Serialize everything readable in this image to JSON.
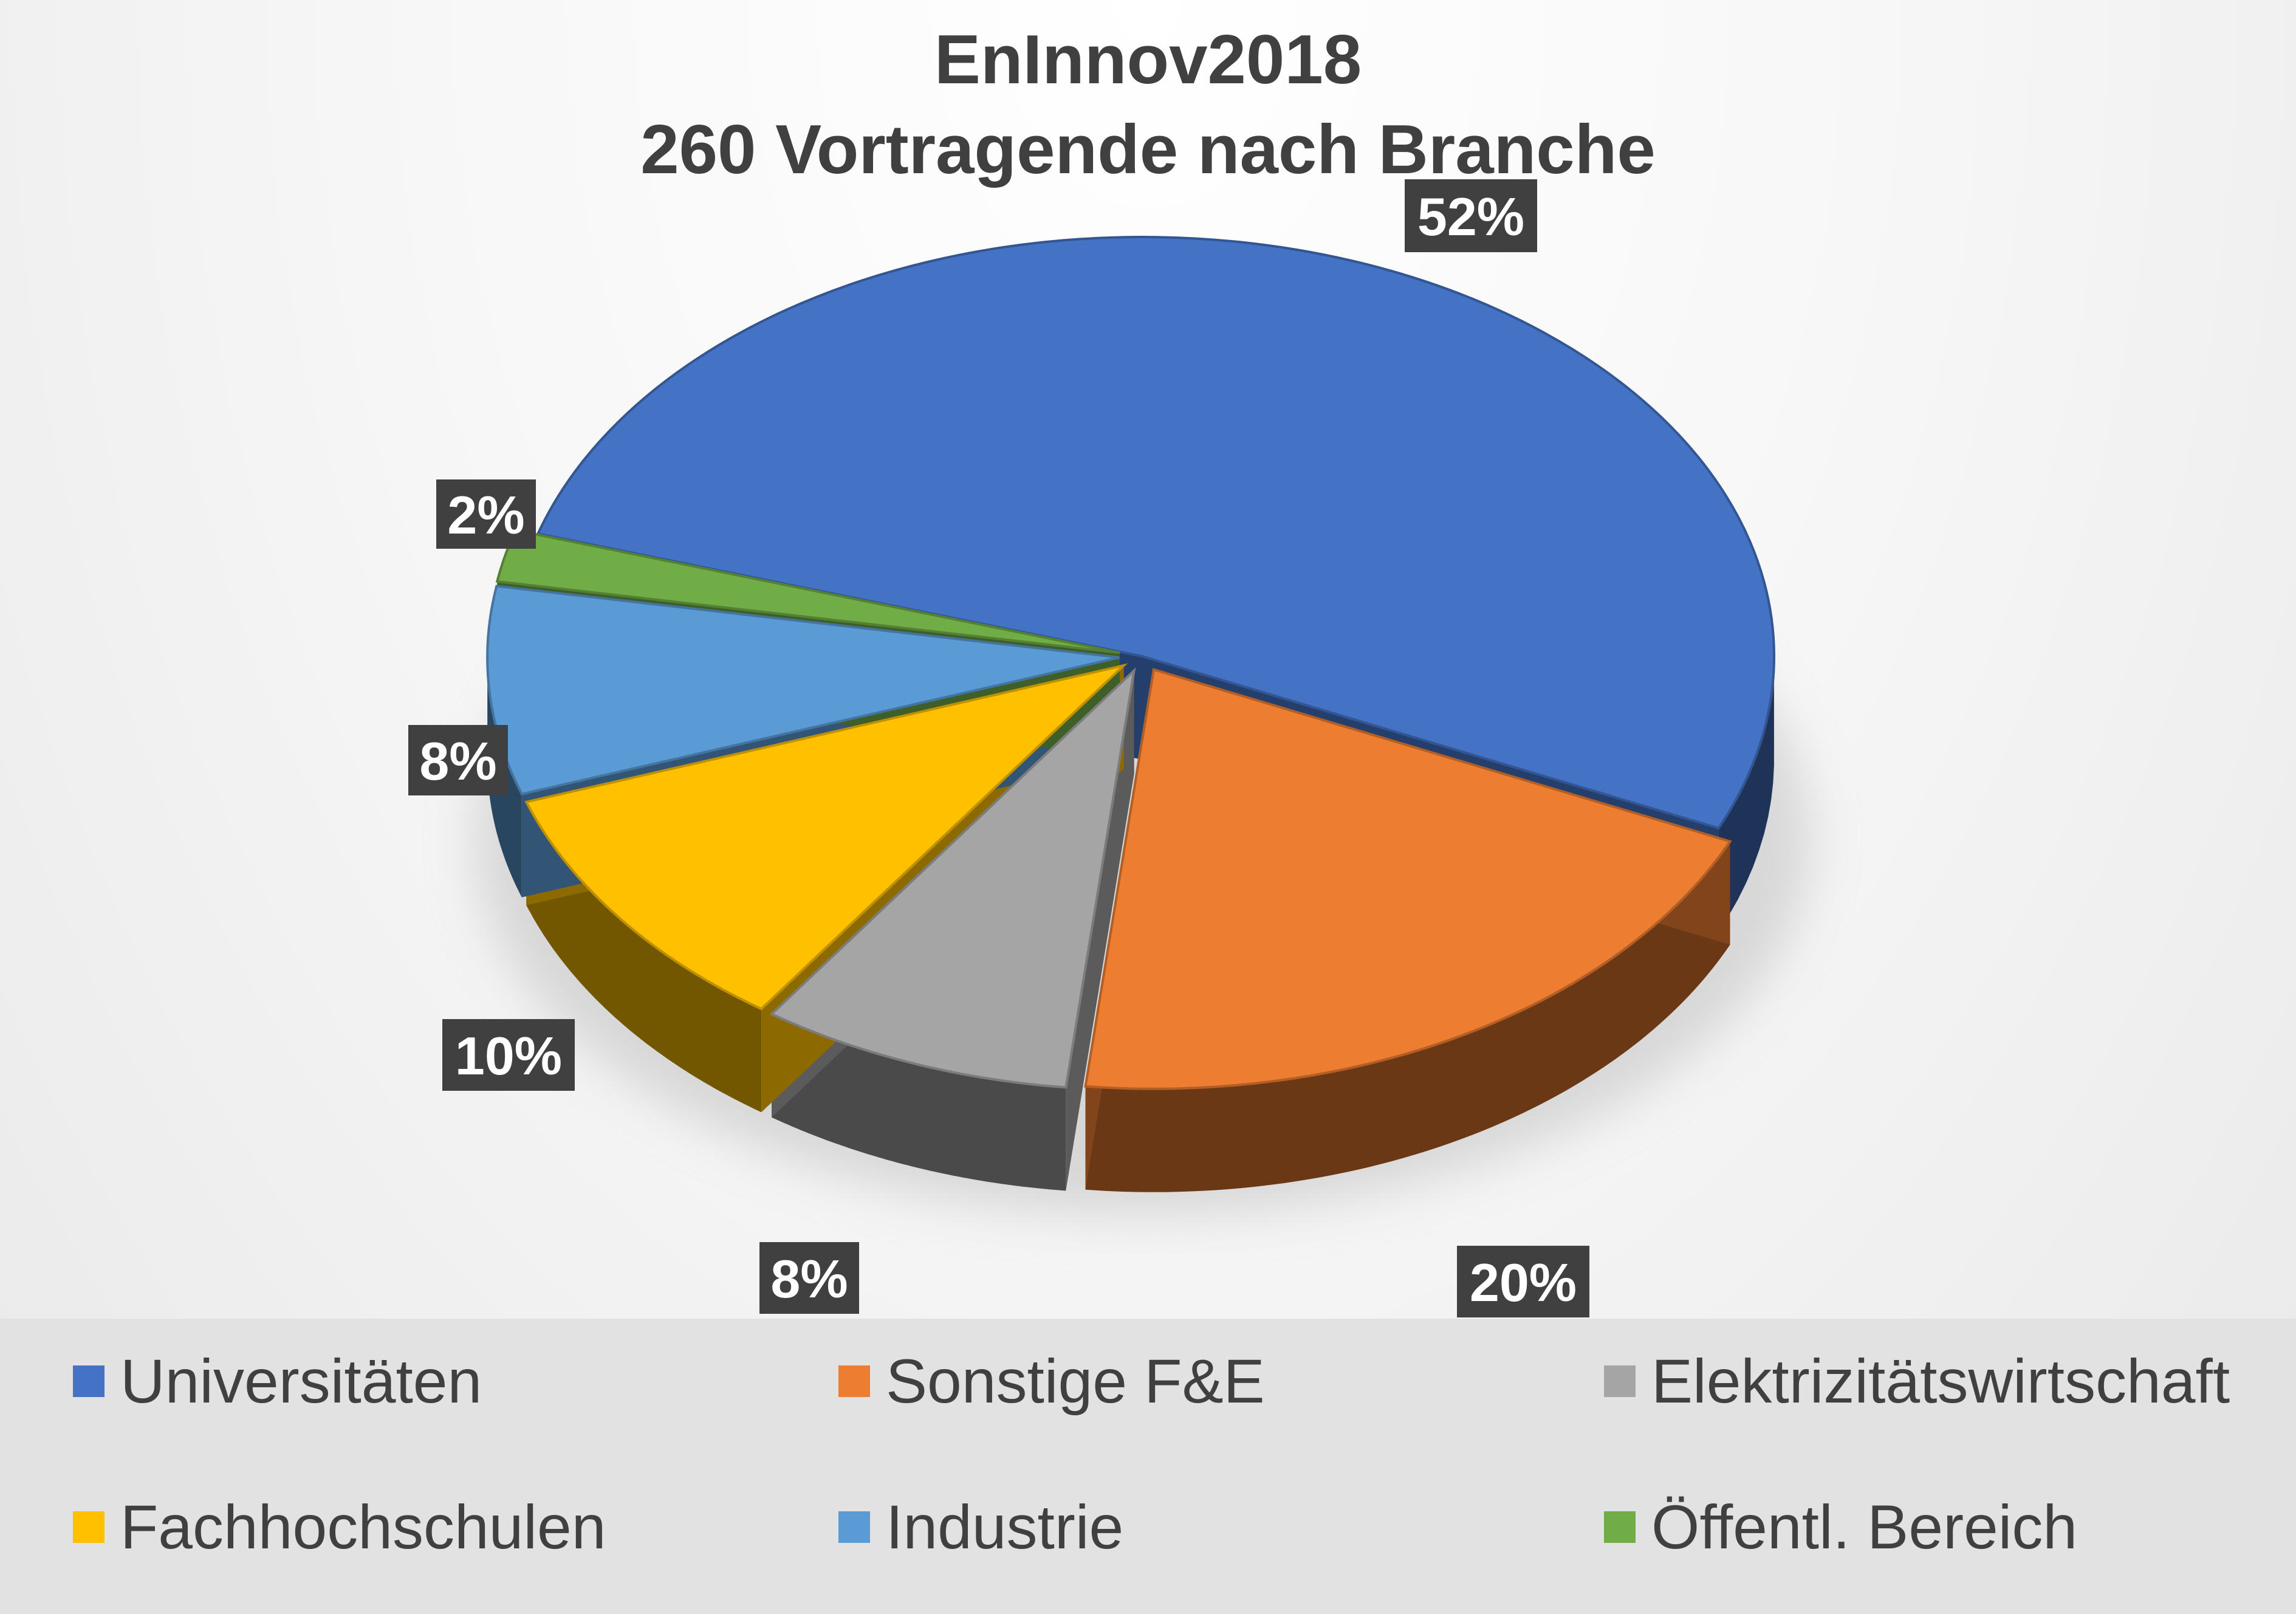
{
  "chart_data": {
    "type": "pie",
    "title": "EnInnov2018",
    "subtitle": "260 Vortragende nach Branche",
    "slices": [
      {
        "name": "Universitäten",
        "value": 52,
        "label": "52%",
        "color": "#4472C4"
      },
      {
        "name": "Sonstige F&E",
        "value": 20,
        "label": "20%",
        "color": "#ED7D31"
      },
      {
        "name": "Elektrizitätswirtschaft",
        "value": 8,
        "label": "8%",
        "color": "#A5A5A5"
      },
      {
        "name": "Fachhochschulen",
        "value": 10,
        "label": "10%",
        "color": "#FFC000"
      },
      {
        "name": "Industrie",
        "value": 8,
        "label": "8%",
        "color": "#5B9BD5"
      },
      {
        "name": "Öffentl. Bereich",
        "value": 2,
        "label": "2%",
        "color": "#70AD47"
      }
    ],
    "legend_position": "bottom",
    "style": "3d-exploded"
  }
}
